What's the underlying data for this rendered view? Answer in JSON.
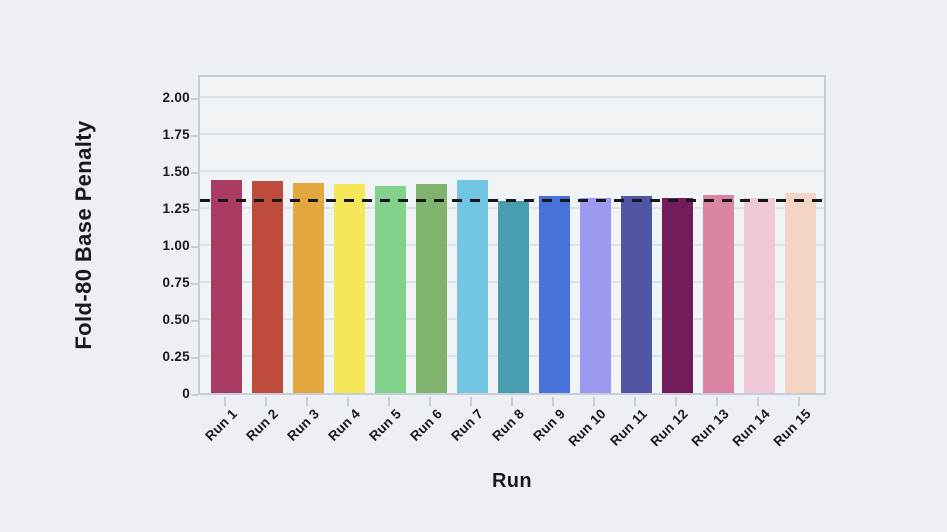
{
  "chart_data": {
    "type": "bar",
    "title": "",
    "xlabel": "Run",
    "ylabel": "Fold-80 Base Penalty",
    "categories": [
      "Run 1",
      "Run 2",
      "Run 3",
      "Run 4",
      "Run 5",
      "Run 6",
      "Run 7",
      "Run 8",
      "Run 9",
      "Run 10",
      "Run 11",
      "Run 12",
      "Run 13",
      "Run 14",
      "Run 15"
    ],
    "values": [
      1.44,
      1.43,
      1.42,
      1.41,
      1.4,
      1.41,
      1.44,
      1.3,
      1.33,
      1.32,
      1.33,
      1.32,
      1.34,
      1.32,
      1.35
    ],
    "bar_colors": [
      "#AA3C64",
      "#BF4B3C",
      "#E2A73E",
      "#F6E75A",
      "#82D18C",
      "#7FB36E",
      "#70C6E3",
      "#489DAE",
      "#4672D9",
      "#9E99F0",
      "#5255A4",
      "#741B5C",
      "#DC84A4",
      "#F0C8D7",
      "#F4D4C3"
    ],
    "y_ticks": [
      0,
      0.25,
      0.5,
      0.75,
      1.0,
      1.25,
      1.5,
      1.75,
      2.0
    ],
    "y_tick_labels": [
      "0",
      "0.25",
      "0.50",
      "0.75",
      "1.00",
      "1.25",
      "1.50",
      "1.75",
      "2.00"
    ],
    "ylim": [
      0,
      2.16
    ],
    "grid": true,
    "legend": null,
    "reference_line": {
      "value": 1.3,
      "style": "dashed",
      "label": ""
    }
  },
  "colors": {
    "page_bg": "#ECF0F4",
    "plot_bg": "#F1F4F7",
    "grid": "#DDE2E8",
    "frame": "#C7CDD5",
    "text": "#17191E",
    "reference_line": "#15171A"
  }
}
